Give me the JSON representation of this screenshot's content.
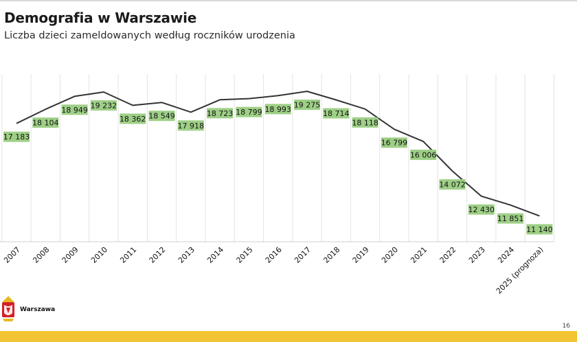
{
  "header": {
    "title": "Demografia w Warszawie",
    "subtitle": "Liczba dzieci zameldowanych według roczników urodzenia"
  },
  "logo": {
    "text": "Warszawa",
    "icon": "warsaw-coat-of-arms-icon"
  },
  "footer": {
    "page_number": "16",
    "bar_color": "#f3c433"
  },
  "chart_data": {
    "type": "line",
    "x": [
      "2007",
      "2008",
      "2009",
      "2010",
      "2011",
      "2012",
      "2013",
      "2014",
      "2015",
      "2016",
      "2017",
      "2018",
      "2019",
      "2020",
      "2021",
      "2022",
      "2023",
      "2024",
      "2025 (prognoza)"
    ],
    "series": [
      {
        "values": [
          17183,
          18104,
          18949,
          19232,
          18362,
          18549,
          17918,
          18723,
          18799,
          18993,
          19275,
          18714,
          18118,
          16799,
          16006,
          14072,
          12430,
          11851,
          11140
        ],
        "labels": [
          "17 183",
          "18 104",
          "18 949",
          "19 232",
          "18 362",
          "18 549",
          "17 918",
          "18 723",
          "18 799",
          "18 993",
          "19 275",
          "18 714",
          "18 118",
          "16 799",
          "16 006",
          "14 072",
          "12 430",
          "11 851",
          "11 140"
        ],
        "color": "#333333",
        "label_bg": "#9ecf86"
      }
    ],
    "grid": {
      "vertical": true,
      "horizontal": false
    },
    "ylim": [
      10800,
      19500
    ],
    "legend": "none"
  }
}
